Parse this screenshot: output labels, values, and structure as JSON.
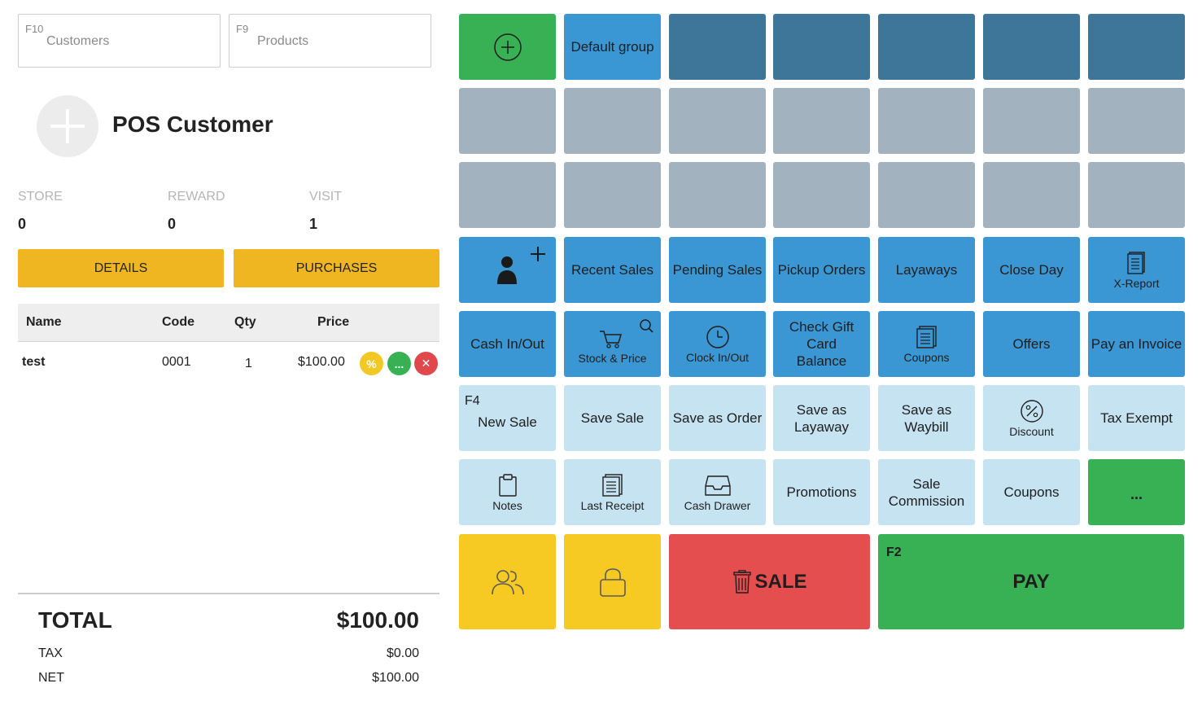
{
  "search": {
    "customers": {
      "fkey": "F10",
      "placeholder": "Customers"
    },
    "products": {
      "fkey": "F9",
      "placeholder": "Products"
    }
  },
  "customer": {
    "name": "POS Customer",
    "stats": [
      {
        "label": "STORE",
        "value": "0"
      },
      {
        "label": "REWARD",
        "value": "0"
      },
      {
        "label": "VISIT",
        "value": "1"
      }
    ],
    "details_label": "DETAILS",
    "purchases_label": "PURCHASES"
  },
  "cart": {
    "columns": [
      "Name",
      "Code",
      "Qty",
      "Price"
    ],
    "rows": [
      {
        "name": "test",
        "code": "0001",
        "qty": "1",
        "price": "$100.00",
        "discount_glyph": "%",
        "more_glyph": "...",
        "remove_glyph": "✕"
      }
    ]
  },
  "totals": {
    "total_label": "TOTAL",
    "total_value": "$100.00",
    "tax_label": "TAX",
    "tax_value": "$0.00",
    "net_label": "NET",
    "net_value": "$100.00"
  },
  "grid": {
    "default_group": "Default group",
    "recent_sales": "Recent Sales",
    "pending_sales": "Pending Sales",
    "pickup_orders": "Pickup Orders",
    "layaways": "Layaways",
    "close_day": "Close Day",
    "x_report": "X-Report",
    "cash_in_out": "Cash In/Out",
    "stock_price": "Stock & Price",
    "clock_in_out": "Clock In/Out",
    "check_gift_card": "Check Gift Card Balance",
    "coupons_small": "Coupons",
    "offers": "Offers",
    "pay_invoice": "Pay an Invoice",
    "new_sale_fkey": "F4",
    "new_sale": "New Sale",
    "save_sale": "Save Sale",
    "save_as_order": "Save as Order",
    "save_as_layaway": "Save as Layaway",
    "save_as_waybill": "Save as Waybill",
    "discount": "Discount",
    "tax_exempt": "Tax Exempt",
    "notes": "Notes",
    "last_receipt": "Last Receipt",
    "cash_drawer": "Cash Drawer",
    "promotions": "Promotions",
    "sale_commission": "Sale Commission",
    "coupons": "Coupons",
    "more": "...",
    "delete_sale": "SALE",
    "pay_fkey": "F2",
    "pay": "PAY"
  },
  "colors": {
    "green": "#38b155",
    "blue": "#3b97d3",
    "steel": "#3d7698",
    "gray": "#a2b3bf",
    "light_blue": "#c6e3f2",
    "yellow": "#f7c923",
    "red": "#e44e4f",
    "amber": "#f0b622"
  },
  "icons": [
    "add-group-icon",
    "add-customer-icon",
    "x-report-icon",
    "cart-search-icon",
    "clock-icon",
    "coupons-icon",
    "discount-icon",
    "notes-icon",
    "receipt-icon",
    "cash-drawer-icon",
    "users-icon",
    "lock-icon",
    "trash-icon"
  ]
}
